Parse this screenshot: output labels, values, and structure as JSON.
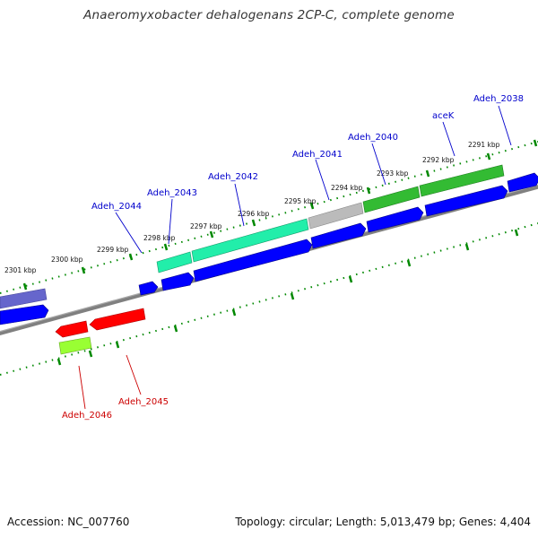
{
  "title": "Anaeromyxobacter dehalogenans 2CP-C, complete genome",
  "footer": {
    "accession": "Accession: NC_007760",
    "summary": "Topology: circular; Length: 5,013,479 bp; Genes: 4,404"
  },
  "ticks": [
    "2291 kbp",
    "2292 kbp",
    "2293 kbp",
    "2294 kbp",
    "2295 kbp",
    "2296 kbp",
    "2297 kbp",
    "2298 kbp",
    "2299 kbp",
    "2300 kbp",
    "2301 kbp"
  ],
  "genes_top": [
    "Adeh_2038",
    "aceK",
    "Adeh_2040",
    "Adeh_2041",
    "Adeh_2042",
    "Adeh_2043",
    "Adeh_2044"
  ],
  "genes_bottom": [
    "Adeh_2045",
    "Adeh_2046"
  ],
  "colors": {
    "backbone": "#808080",
    "cds_blue": "#0000ff",
    "label_blue": "#0000cc",
    "label_red": "#cc0000",
    "gene_red": "#ff0000",
    "gene_green": "#33bb33",
    "gene_teal": "#22eeaa",
    "gene_grey": "#bbbbbb",
    "gene_lime": "#99ff33",
    "gene_purple": "#6666cc",
    "tick_green": "#008800"
  }
}
